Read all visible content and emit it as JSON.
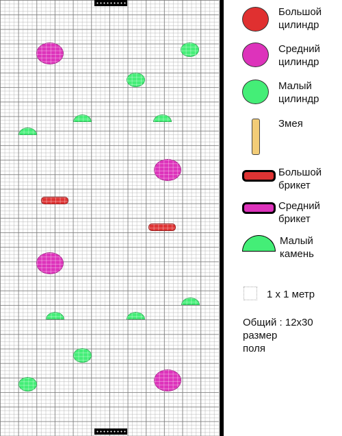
{
  "colors": {
    "cylinder_big": "#e03030",
    "cylinder_mid": "#dd33bb",
    "cylinder_small": "#44ee77",
    "snake": "#f2cc77",
    "brick_big": "#dd3333",
    "brick_mid": "#dd33bb",
    "stone_small": "#44ee77"
  },
  "legend": {
    "cylinder_big": "Большой\nцилиндр",
    "cylinder_mid": "Средний\nцилиндр",
    "cylinder_small": "Малый\nцилиндр",
    "snake": "Змея",
    "brick_big": "Большой\nбрикет",
    "brick_mid": "Средний\nбрикет",
    "stone_small": "Малый\nкамень",
    "scale": "1 x 1 метр",
    "total_size": "Общий :  12x30\nразмер\nполя"
  },
  "field": {
    "columns": 12,
    "rows": 30,
    "objects": [
      {
        "kind": "cylinder_mid",
        "col": 2.75,
        "row": 3.7
      },
      {
        "kind": "cylinder_small",
        "col": 10.4,
        "row": 3.4
      },
      {
        "kind": "cylinder_small",
        "col": 7.45,
        "row": 5.5
      },
      {
        "kind": "stone_small",
        "col": 4.5,
        "row": 8.4
      },
      {
        "kind": "stone_small",
        "col": 8.9,
        "row": 8.4
      },
      {
        "kind": "stone_small",
        "col": 1.5,
        "row": 9.3
      },
      {
        "kind": "cylinder_mid",
        "col": 9.2,
        "row": 11.7
      },
      {
        "kind": "brick_big",
        "col": 3.0,
        "row": 13.8
      },
      {
        "kind": "brick_big",
        "col": 8.9,
        "row": 15.65
      },
      {
        "kind": "cylinder_mid",
        "col": 2.75,
        "row": 18.1
      },
      {
        "kind": "stone_small",
        "col": 10.45,
        "row": 21.0
      },
      {
        "kind": "stone_small",
        "col": 3.0,
        "row": 22.0
      },
      {
        "kind": "stone_small",
        "col": 7.45,
        "row": 22.0
      },
      {
        "kind": "cylinder_small",
        "col": 4.5,
        "row": 24.45
      },
      {
        "kind": "cylinder_small",
        "col": 1.5,
        "row": 26.45
      },
      {
        "kind": "cylinder_mid",
        "col": 9.2,
        "row": 26.2
      }
    ],
    "gates": [
      {
        "col": 5.95,
        "row": 0.2
      },
      {
        "col": 5.95,
        "row": 29.7
      }
    ]
  }
}
